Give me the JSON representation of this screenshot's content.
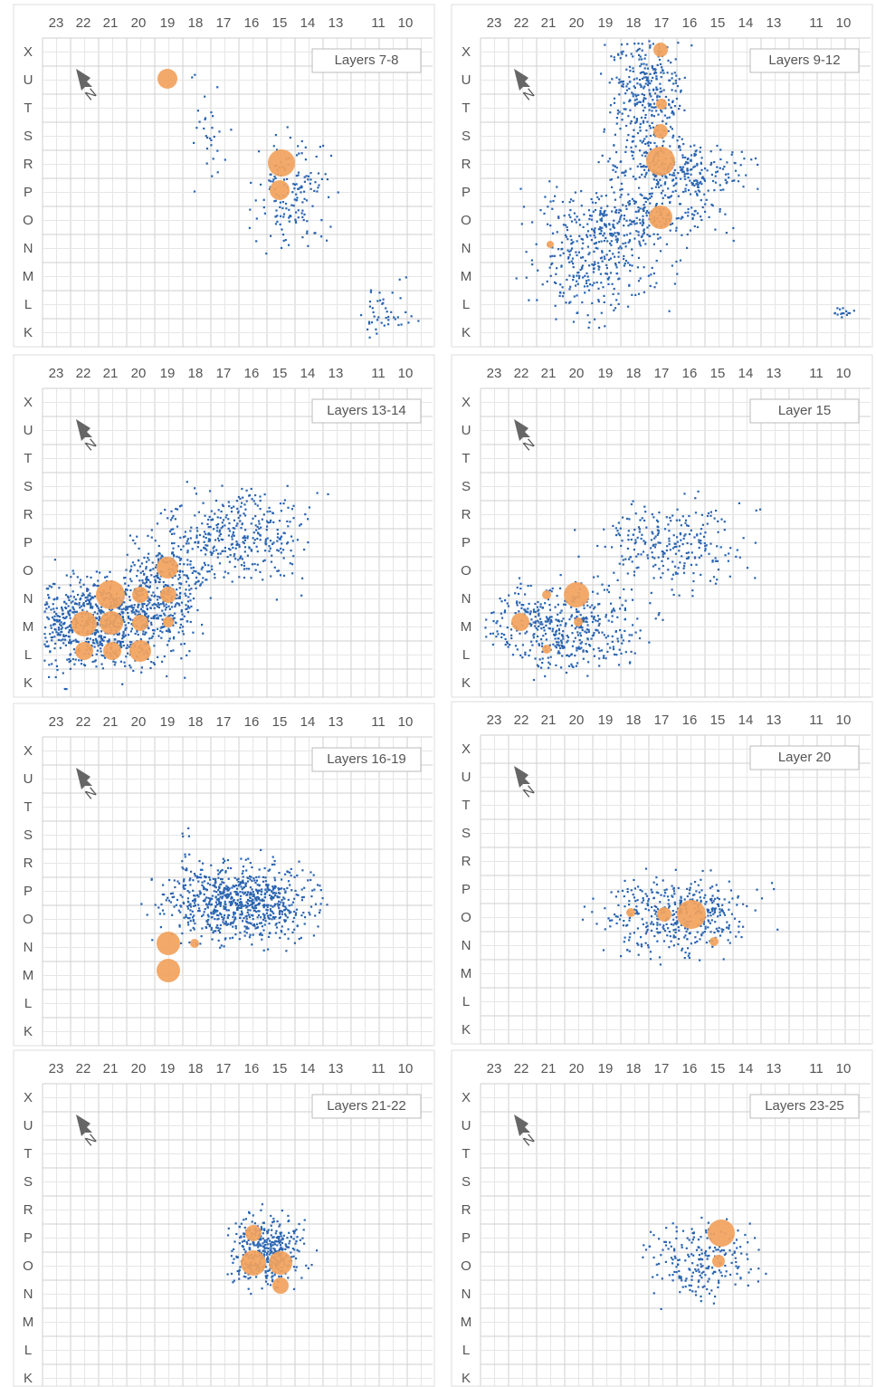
{
  "columns": [
    "23",
    "22",
    "21",
    "20",
    "19",
    "18",
    "17",
    "16",
    "15",
    "14",
    "13",
    "11",
    "10"
  ],
  "rows": [
    "X",
    "U",
    "T",
    "S",
    "R",
    "P",
    "O",
    "N",
    "M",
    "L",
    "K"
  ],
  "compass": "N",
  "panels": [
    {
      "label": "Layers 7-8"
    },
    {
      "label": "Layers 9-12"
    },
    {
      "label": "Layers 13-14"
    },
    {
      "label": "Layer 15"
    },
    {
      "label": "Layers 16-19"
    },
    {
      "label": "Layer 20"
    },
    {
      "label": "Layers 21-22"
    },
    {
      "label": "Layers 23-25"
    }
  ]
}
